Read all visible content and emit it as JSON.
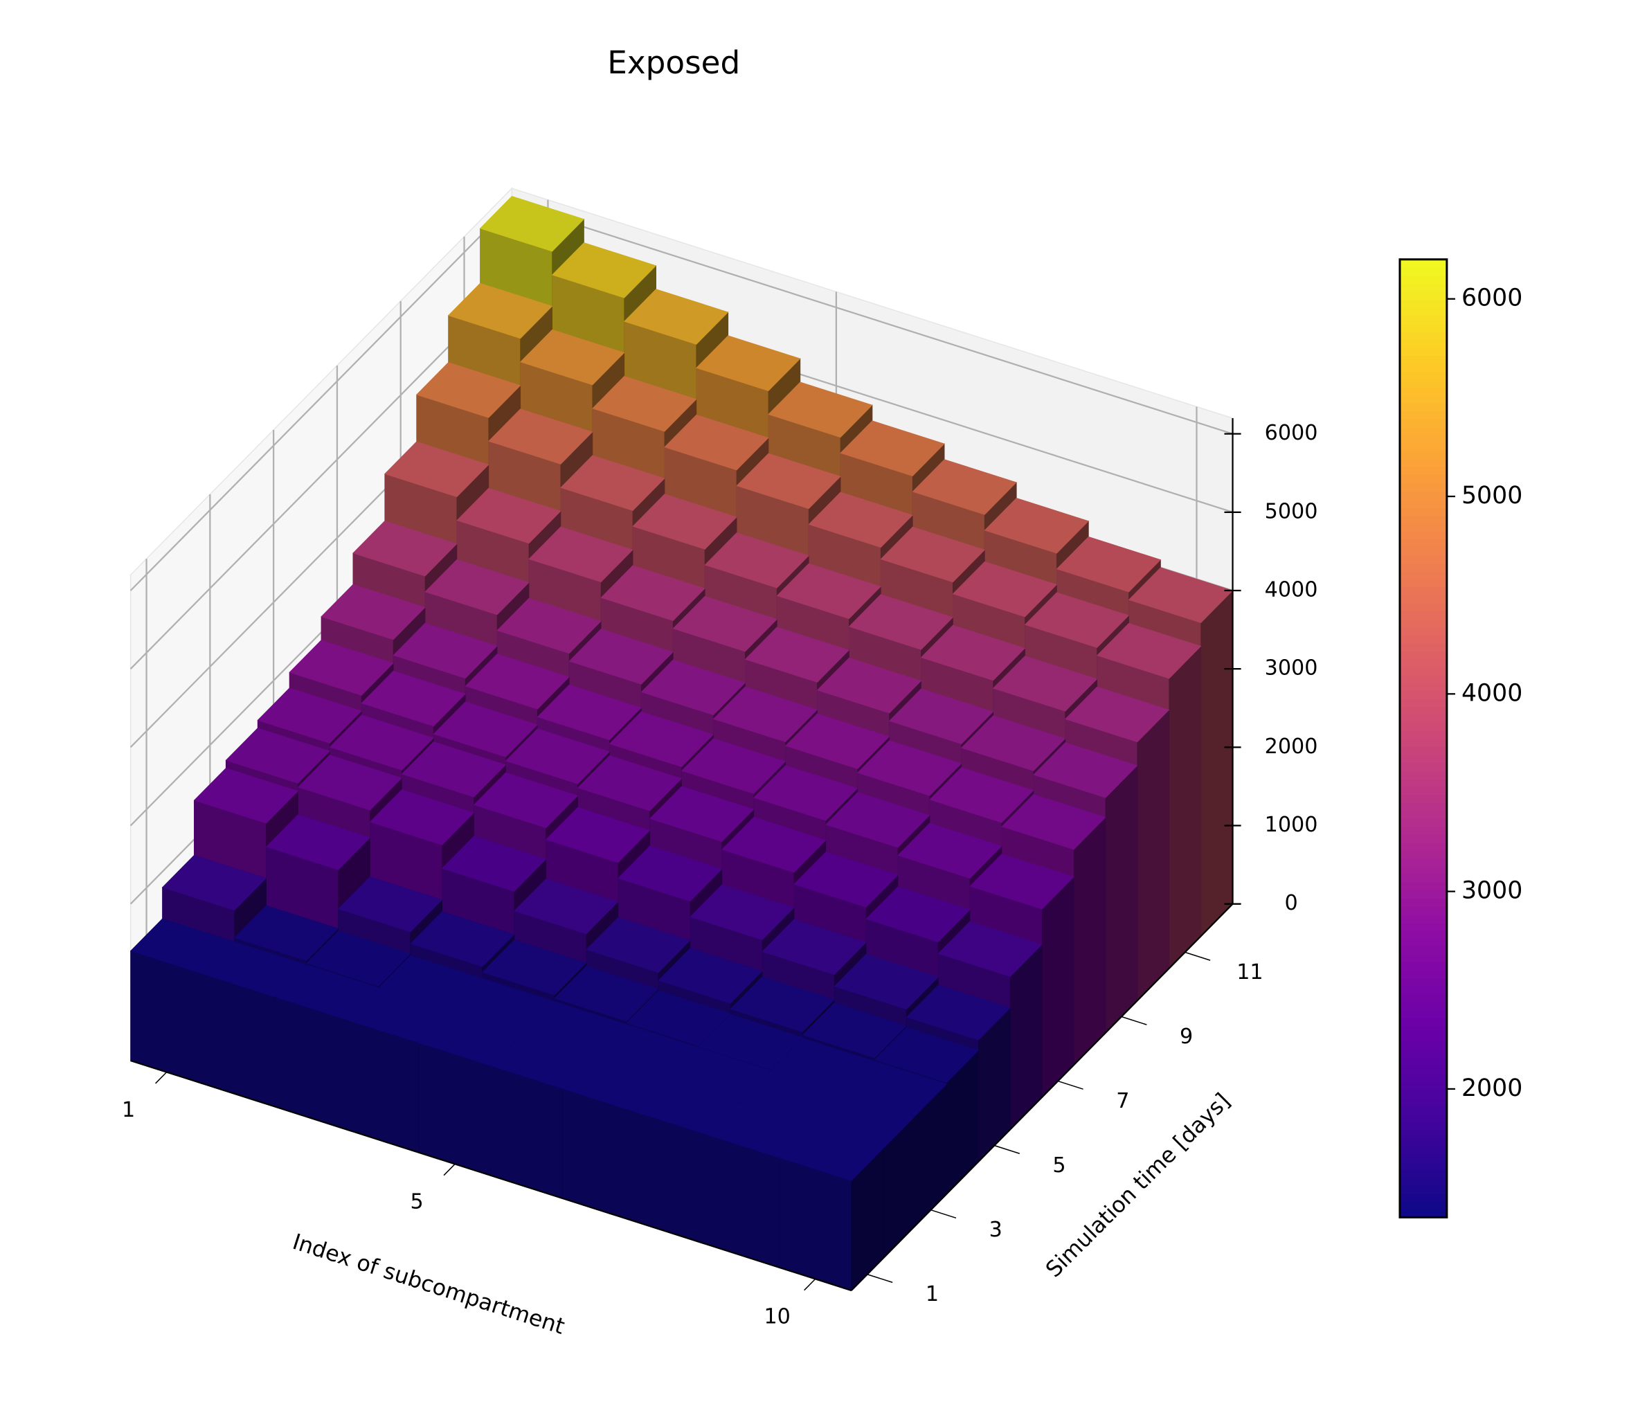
{
  "chart_data": {
    "type": "bar3d",
    "title": "Exposed",
    "xlabel": "Index of subcompartment",
    "ylabel": "Simulation time [days]",
    "x": [
      1,
      2,
      3,
      4,
      5,
      6,
      7,
      8,
      9,
      10
    ],
    "y": [
      1,
      2,
      3,
      4,
      5,
      6,
      7,
      8,
      9,
      10,
      11,
      12
    ],
    "values": [
      [
        1400,
        1400,
        1400,
        1400,
        1400,
        1400,
        1400,
        1400,
        1400,
        1400
      ],
      [
        1800,
        1450,
        1420,
        1400,
        1400,
        1400,
        1400,
        1400,
        1400,
        1400
      ],
      [
        2500,
        2200,
        1700,
        1550,
        1480,
        1440,
        1420,
        1410,
        1400,
        1400
      ],
      [
        2600,
        2550,
        2400,
        2100,
        1850,
        1650,
        1550,
        1480,
        1440,
        1420
      ],
      [
        2700,
        2650,
        2600,
        2500,
        2350,
        2150,
        1950,
        1800,
        1650,
        1550
      ],
      [
        2900,
        2800,
        2700,
        2650,
        2600,
        2500,
        2400,
        2250,
        2100,
        1950
      ],
      [
        3200,
        3000,
        2900,
        2800,
        2750,
        2700,
        2650,
        2600,
        2500,
        2400
      ],
      [
        3600,
        3400,
        3200,
        3100,
        3000,
        2950,
        2900,
        2850,
        2800,
        2750
      ],
      [
        4200,
        3900,
        3700,
        3500,
        3400,
        3300,
        3200,
        3100,
        3050,
        3000
      ],
      [
        4800,
        4500,
        4200,
        4000,
        3800,
        3700,
        3600,
        3500,
        3400,
        3300
      ],
      [
        5400,
        5100,
        4800,
        4600,
        4400,
        4200,
        4050,
        3900,
        3800,
        3700
      ],
      [
        6100,
        5800,
        5500,
        5200,
        4900,
        4700,
        4500,
        4300,
        4100,
        4000
      ]
    ],
    "xlim": [
      0.5,
      10.5
    ],
    "ylim": [
      0.5,
      12.5
    ],
    "zlim": [
      0,
      6200
    ],
    "xticks": [
      1,
      5,
      10
    ],
    "yticks": [
      1,
      3,
      5,
      7,
      9,
      11
    ],
    "zticks": [
      0,
      1000,
      2000,
      3000,
      4000,
      5000,
      6000
    ],
    "colormap": "plasma",
    "grid": true,
    "colorbar": {
      "lim": [
        1350,
        6200
      ],
      "ticks": [
        2000,
        3000,
        4000,
        5000,
        6000
      ]
    }
  }
}
